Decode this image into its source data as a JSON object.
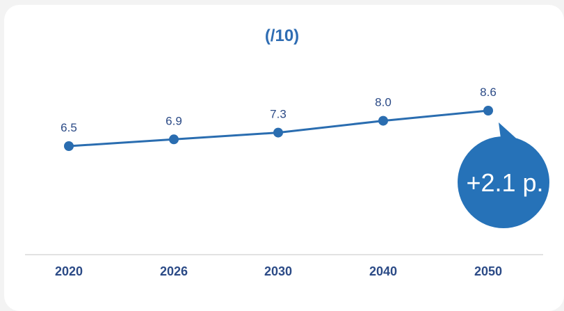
{
  "chart_data": {
    "type": "line",
    "title": "(/10)",
    "categories": [
      "2020",
      "2026",
      "2030",
      "2040",
      "2050"
    ],
    "values": [
      6.5,
      6.9,
      7.3,
      8.0,
      8.6
    ],
    "value_labels": [
      "6.5",
      "6.9",
      "7.3",
      "8.0",
      "8.6"
    ],
    "annotation": "+2.1 p.",
    "grid": false,
    "legend": "none",
    "colors": {
      "line": "#2a6db0",
      "badge": "#2672b8",
      "labels": "#2b4a86",
      "title": "#2f6db3"
    }
  }
}
